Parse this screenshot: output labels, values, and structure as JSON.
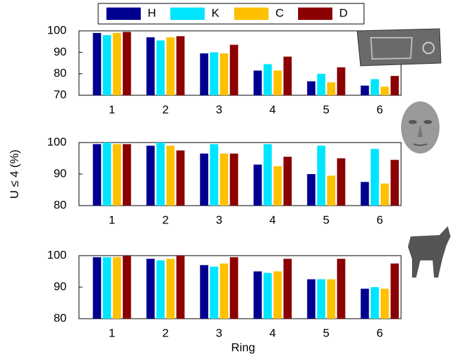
{
  "chart_data": [
    {
      "type": "bar",
      "categories": [
        "1",
        "2",
        "3",
        "4",
        "5",
        "6"
      ],
      "ylim": [
        70,
        100
      ],
      "yticks": [
        70,
        80,
        90,
        100
      ],
      "series": [
        {
          "name": "H",
          "color": "#000090",
          "values": [
            99,
            97,
            89.5,
            81.5,
            76.5,
            74.5
          ]
        },
        {
          "name": "K",
          "color": "#00e5ff",
          "values": [
            98,
            95.5,
            90,
            84.5,
            80,
            77.5
          ]
        },
        {
          "name": "C",
          "color": "#ffc000",
          "values": [
            99,
            97,
            89.5,
            81.5,
            76,
            74
          ]
        },
        {
          "name": "D",
          "color": "#8b0000",
          "values": [
            99.5,
            97.5,
            93.5,
            88,
            83,
            79
          ]
        }
      ]
    },
    {
      "type": "bar",
      "y_label": "U ≤ 4 (%)",
      "categories": [
        "1",
        "2",
        "3",
        "4",
        "5",
        "6"
      ],
      "ylim": [
        80,
        100
      ],
      "yticks": [
        80,
        90,
        100
      ],
      "series": [
        {
          "color": "#000090",
          "values": [
            99.5,
            99,
            96.5,
            93,
            90,
            87.5
          ]
        },
        {
          "color": "#00e5ff",
          "values": [
            100,
            100,
            99.5,
            99.5,
            99,
            98
          ]
        },
        {
          "color": "#ffc000",
          "values": [
            99.5,
            99,
            96.5,
            92.5,
            89.5,
            87
          ]
        },
        {
          "color": "#8b0000",
          "values": [
            99.5,
            97.5,
            96.5,
            95.5,
            95,
            94.5
          ]
        }
      ]
    },
    {
      "type": "bar",
      "x_label": "Ring",
      "categories": [
        "1",
        "2",
        "3",
        "4",
        "5",
        "6"
      ],
      "ylim": [
        80,
        100
      ],
      "yticks": [
        80,
        90,
        100
      ],
      "series": [
        {
          "color": "#000090",
          "values": [
            99.5,
            99,
            97,
            95,
            92.5,
            89.5
          ]
        },
        {
          "color": "#00e5ff",
          "values": [
            99.5,
            98.5,
            96.5,
            94.5,
            92.5,
            90
          ]
        },
        {
          "color": "#ffc000",
          "values": [
            99.5,
            99,
            97.5,
            95,
            92.5,
            89.5
          ]
        },
        {
          "color": "#8b0000",
          "values": [
            100,
            100,
            99.5,
            99,
            99,
            97.5
          ]
        }
      ]
    }
  ]
}
